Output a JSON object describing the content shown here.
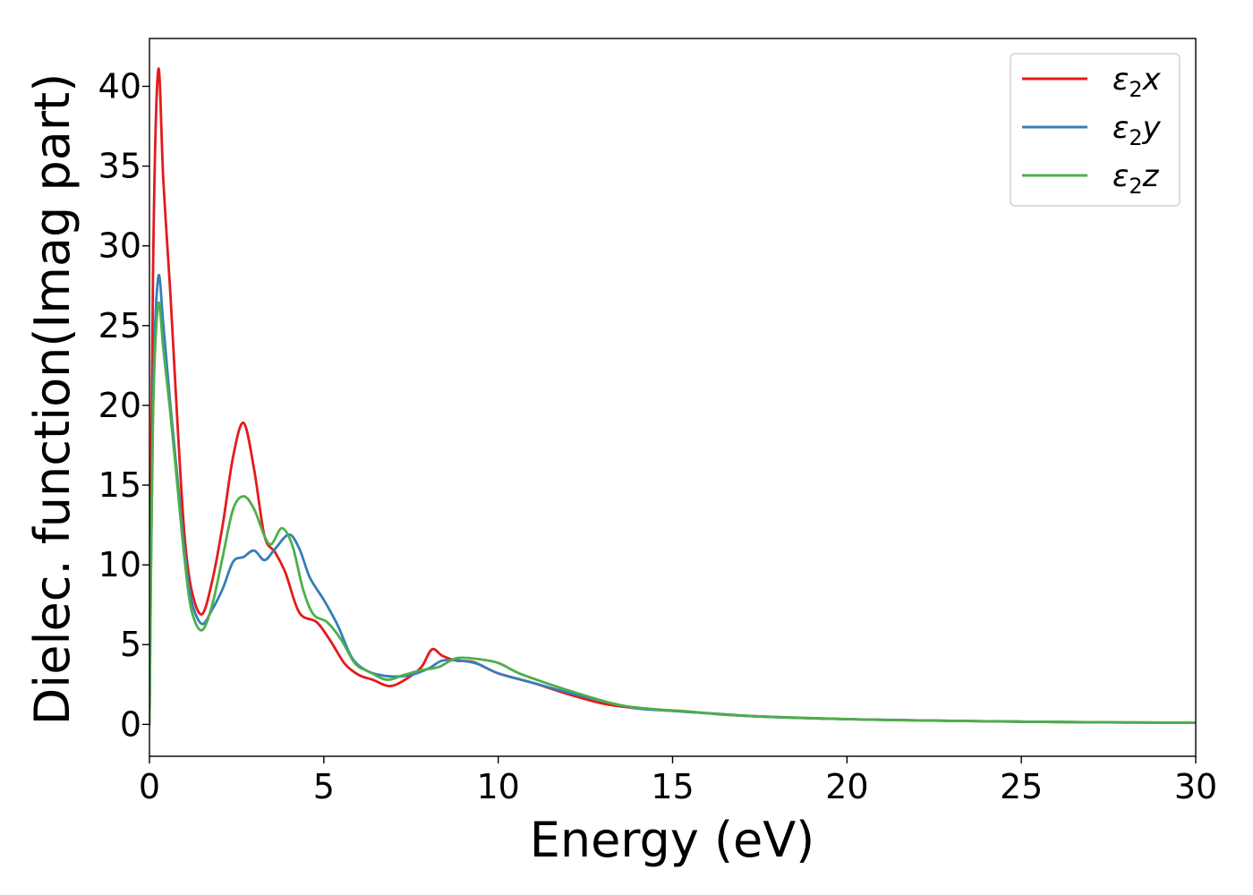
{
  "chart_data": {
    "type": "line",
    "title": "",
    "xlabel": "Energy (eV)",
    "ylabel": "Dielec. function(Imag part)",
    "xlim": [
      0,
      30
    ],
    "ylim": [
      -2,
      43
    ],
    "grid": false,
    "legend_position": "top-right",
    "xticks": [
      0,
      5,
      10,
      15,
      20,
      25,
      30
    ],
    "yticks": [
      0,
      5,
      10,
      15,
      20,
      25,
      30,
      35,
      40
    ],
    "series": [
      {
        "name": "ε2x",
        "legend_base": "ε",
        "legend_sub": "2",
        "legend_suffix": "x",
        "color": "#e41a1c",
        "points": [
          [
            0,
            0
          ],
          [
            0.1,
            28
          ],
          [
            0.25,
            41
          ],
          [
            0.4,
            34
          ],
          [
            0.6,
            27
          ],
          [
            0.8,
            19
          ],
          [
            1.0,
            12
          ],
          [
            1.2,
            8.5
          ],
          [
            1.5,
            6.9
          ],
          [
            1.8,
            9
          ],
          [
            2.1,
            12.5
          ],
          [
            2.4,
            16.8
          ],
          [
            2.7,
            18.9
          ],
          [
            3.0,
            16
          ],
          [
            3.3,
            11.8
          ],
          [
            3.6,
            10.8
          ],
          [
            3.9,
            9.5
          ],
          [
            4.3,
            7
          ],
          [
            4.8,
            6.4
          ],
          [
            5.2,
            5.2
          ],
          [
            5.6,
            3.8
          ],
          [
            6.0,
            3.1
          ],
          [
            6.4,
            2.8
          ],
          [
            6.9,
            2.4
          ],
          [
            7.4,
            2.9
          ],
          [
            7.8,
            3.6
          ],
          [
            8.1,
            4.7
          ],
          [
            8.4,
            4.3
          ],
          [
            8.8,
            4.0
          ],
          [
            9.3,
            3.9
          ],
          [
            10.0,
            3.2
          ],
          [
            11.0,
            2.6
          ],
          [
            12.0,
            1.9
          ],
          [
            13.0,
            1.3
          ],
          [
            14.0,
            1.0
          ],
          [
            15.0,
            0.85
          ],
          [
            16.0,
            0.7
          ],
          [
            17.0,
            0.55
          ],
          [
            18.0,
            0.45
          ],
          [
            20.0,
            0.33
          ],
          [
            22.0,
            0.25
          ],
          [
            25.0,
            0.17
          ],
          [
            28.0,
            0.12
          ],
          [
            30.0,
            0.1
          ]
        ]
      },
      {
        "name": "ε2y",
        "legend_base": "ε",
        "legend_sub": "2",
        "legend_suffix": "y",
        "color": "#377eb8",
        "points": [
          [
            0,
            0
          ],
          [
            0.1,
            20
          ],
          [
            0.25,
            28
          ],
          [
            0.4,
            25
          ],
          [
            0.6,
            20
          ],
          [
            0.8,
            15.5
          ],
          [
            1.0,
            11
          ],
          [
            1.2,
            7.8
          ],
          [
            1.5,
            6.3
          ],
          [
            1.8,
            7.2
          ],
          [
            2.1,
            8.5
          ],
          [
            2.4,
            10.2
          ],
          [
            2.7,
            10.5
          ],
          [
            3.0,
            10.9
          ],
          [
            3.3,
            10.3
          ],
          [
            3.6,
            11
          ],
          [
            4.0,
            11.9
          ],
          [
            4.3,
            11
          ],
          [
            4.6,
            9.2
          ],
          [
            5.0,
            7.8
          ],
          [
            5.4,
            6.2
          ],
          [
            5.8,
            4.2
          ],
          [
            6.2,
            3.4
          ],
          [
            6.6,
            3.1
          ],
          [
            7.0,
            3.0
          ],
          [
            7.5,
            3.1
          ],
          [
            8.0,
            3.5
          ],
          [
            8.4,
            4.0
          ],
          [
            8.9,
            4.0
          ],
          [
            9.4,
            3.8
          ],
          [
            10.0,
            3.2
          ],
          [
            11.0,
            2.6
          ],
          [
            12.0,
            2.0
          ],
          [
            13.0,
            1.45
          ],
          [
            14.0,
            1.0
          ],
          [
            15.0,
            0.85
          ],
          [
            16.0,
            0.7
          ],
          [
            17.0,
            0.55
          ],
          [
            18.0,
            0.45
          ],
          [
            20.0,
            0.33
          ],
          [
            22.0,
            0.25
          ],
          [
            25.0,
            0.17
          ],
          [
            28.0,
            0.12
          ],
          [
            30.0,
            0.1
          ]
        ]
      },
      {
        "name": "ε2z",
        "legend_base": "ε",
        "legend_sub": "2",
        "legend_suffix": "z",
        "color": "#4daf4a",
        "points": [
          [
            0,
            0
          ],
          [
            0.1,
            19
          ],
          [
            0.25,
            26.3
          ],
          [
            0.4,
            23.5
          ],
          [
            0.6,
            19.5
          ],
          [
            0.8,
            15
          ],
          [
            1.0,
            10.5
          ],
          [
            1.2,
            7.2
          ],
          [
            1.5,
            5.9
          ],
          [
            1.8,
            7.5
          ],
          [
            2.1,
            10.5
          ],
          [
            2.4,
            13.5
          ],
          [
            2.7,
            14.3
          ],
          [
            3.0,
            13.5
          ],
          [
            3.3,
            11.8
          ],
          [
            3.5,
            11.3
          ],
          [
            3.8,
            12.3
          ],
          [
            4.1,
            11.2
          ],
          [
            4.4,
            8.5
          ],
          [
            4.7,
            6.9
          ],
          [
            5.1,
            6.4
          ],
          [
            5.5,
            5.3
          ],
          [
            5.9,
            3.8
          ],
          [
            6.3,
            3.3
          ],
          [
            6.8,
            2.8
          ],
          [
            7.3,
            3.1
          ],
          [
            7.8,
            3.4
          ],
          [
            8.3,
            3.6
          ],
          [
            8.8,
            4.15
          ],
          [
            9.4,
            4.1
          ],
          [
            10.0,
            3.85
          ],
          [
            10.6,
            3.2
          ],
          [
            11.5,
            2.5
          ],
          [
            12.5,
            1.8
          ],
          [
            13.5,
            1.2
          ],
          [
            14.5,
            0.95
          ],
          [
            15.5,
            0.8
          ],
          [
            16.5,
            0.6
          ],
          [
            17.5,
            0.5
          ],
          [
            20.0,
            0.33
          ],
          [
            22.0,
            0.25
          ],
          [
            25.0,
            0.17
          ],
          [
            28.0,
            0.12
          ],
          [
            30.0,
            0.1
          ]
        ]
      }
    ]
  }
}
